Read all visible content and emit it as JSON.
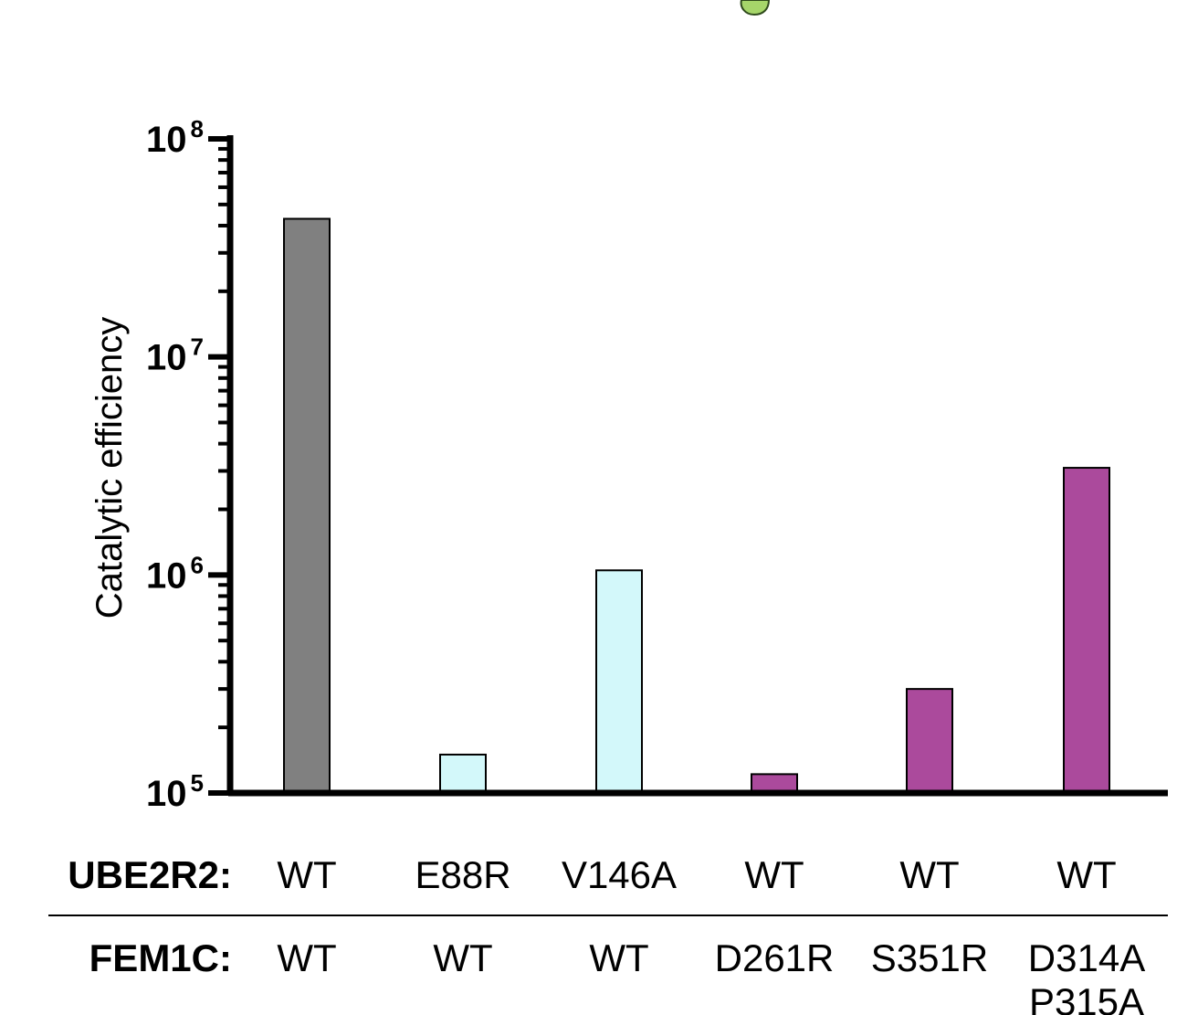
{
  "chart_data": {
    "type": "bar",
    "ylabel": "Catalytic efficiency",
    "xlabel": "",
    "yscale": "log",
    "ylim": [
      100000,
      100000000
    ],
    "yticks": [
      {
        "base": "10",
        "exp": "5"
      },
      {
        "base": "10",
        "exp": "6"
      },
      {
        "base": "10",
        "exp": "7"
      },
      {
        "base": "10",
        "exp": "8"
      }
    ],
    "rows": [
      {
        "label": "UBE2R2:",
        "values": [
          "WT",
          "E88R",
          "V146A",
          "WT",
          "WT",
          "WT"
        ]
      },
      {
        "label": "FEM1C:",
        "values": [
          "WT",
          "WT",
          "WT",
          "D261R",
          "S351R",
          "D314A\nP315A"
        ]
      }
    ],
    "values": [
      43000000,
      150000,
      1050000,
      122000,
      300000,
      3100000
    ],
    "colors": [
      "#808080",
      "#d3f8fa",
      "#d3f8fa",
      "#ab4a9c",
      "#ab4a9c",
      "#ab4a9c"
    ]
  }
}
